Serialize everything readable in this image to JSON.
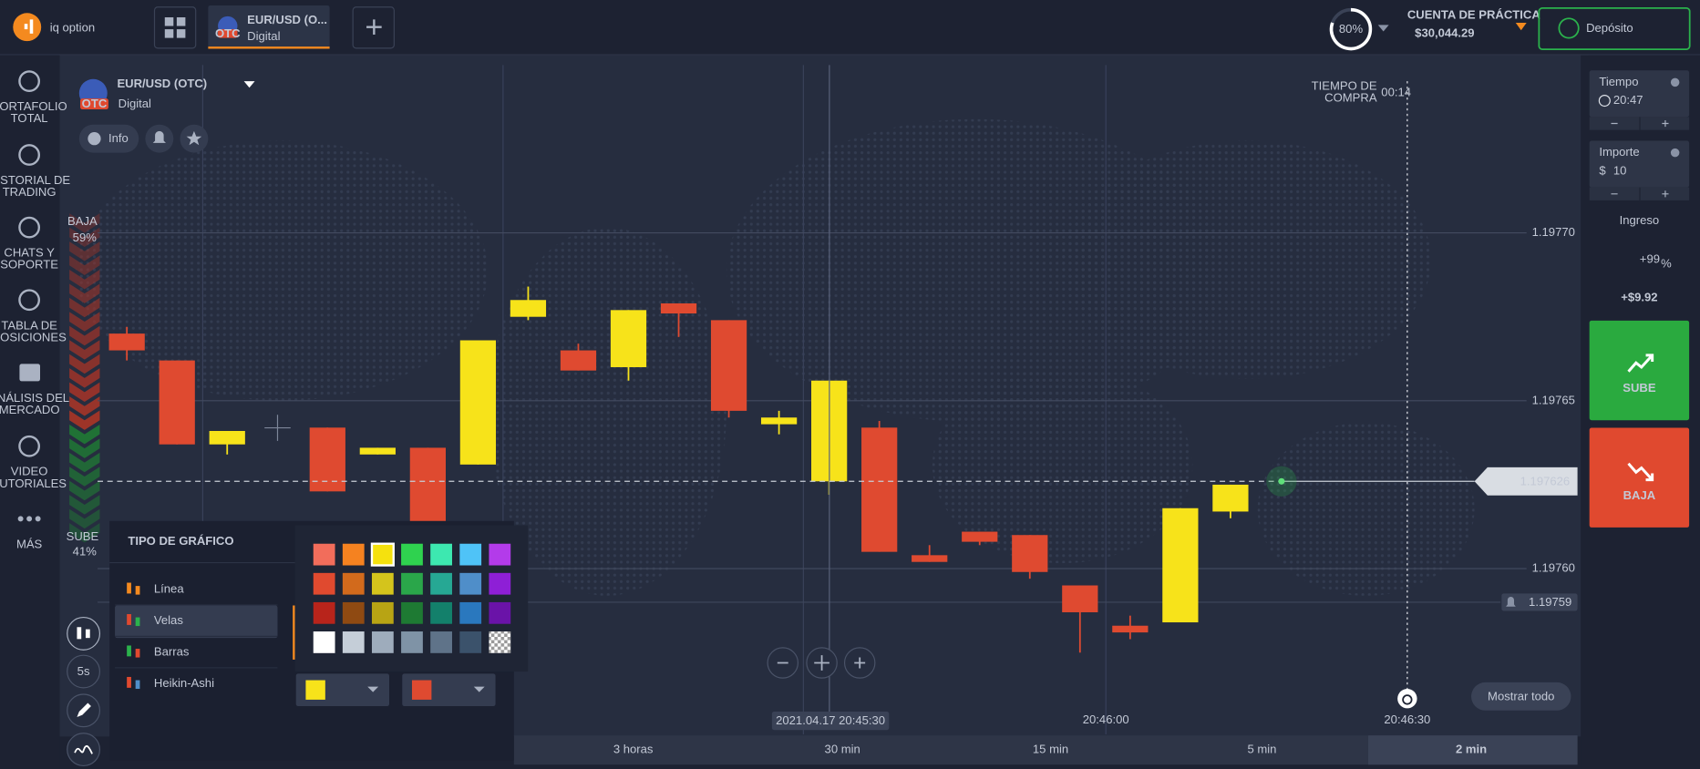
{
  "header": {
    "logo": "iq option",
    "tab": {
      "title": "EUR/USD (O...",
      "subtitle": "Digital",
      "badge": "OTC"
    },
    "progress": "80%",
    "account_label": "CUENTA DE PRÁCTICA",
    "balance": "$30,044.29",
    "deposit": "Depósito"
  },
  "sidebar": [
    [
      "PORTAFOLIO",
      "TOTAL"
    ],
    [
      "HISTORIAL DE",
      "TRADING"
    ],
    [
      "CHATS Y",
      "SOPORTE"
    ],
    [
      "TABLA DE",
      "POSICIONES"
    ],
    [
      "ANÁLISIS DEL",
      "MERCADO"
    ],
    [
      "VIDEO",
      "TUTORIALES"
    ],
    [
      "MÁS"
    ]
  ],
  "sentiment": {
    "down_label": "BAJA",
    "down": "59%",
    "up_label": "SUBE",
    "up": "41%"
  },
  "asset": {
    "name": "EUR/USD (OTC)",
    "type": "Digital",
    "badge": "OTC",
    "info": "Info"
  },
  "purchase_timer": {
    "label": [
      "TIEMPO DE",
      "COMPRA"
    ],
    "time": "00:14"
  },
  "chart": {
    "ylim": [
      1.19755,
      1.19775
    ],
    "yticks": [
      {
        "value": 1.1977,
        "label": "1.19770"
      },
      {
        "value": 1.19765,
        "label": "1.19765"
      },
      {
        "value": 1.1976,
        "label": "1.19760"
      }
    ],
    "up_color": "#f7e31a",
    "down_color": "#df4a30",
    "candles": [
      {
        "open": 1.19767,
        "high": 1.197672,
        "low": 1.197662,
        "close": 1.197665
      },
      {
        "open": 1.197662,
        "high": 1.197662,
        "low": 1.197637,
        "close": 1.197637
      },
      {
        "open": 1.197637,
        "high": 1.197641,
        "low": 1.197634,
        "close": 1.197641
      },
      null,
      {
        "open": 1.197642,
        "high": 1.197642,
        "low": 1.197623,
        "close": 1.197623
      },
      {
        "open": 1.197634,
        "high": 1.197636,
        "low": 1.197634,
        "close": 1.197636
      },
      {
        "open": 1.197636,
        "high": 1.197636,
        "low": 1.197614,
        "close": 1.197614
      },
      {
        "open": 1.197631,
        "high": 1.197668,
        "low": 1.197631,
        "close": 1.197668
      },
      {
        "open": 1.197675,
        "high": 1.197684,
        "low": 1.197674,
        "close": 1.19768
      },
      {
        "open": 1.197665,
        "high": 1.197667,
        "low": 1.197659,
        "close": 1.197659
      },
      {
        "open": 1.19766,
        "high": 1.197677,
        "low": 1.197656,
        "close": 1.197677
      },
      {
        "open": 1.197679,
        "high": 1.197679,
        "low": 1.197669,
        "close": 1.197676
      },
      {
        "open": 1.197674,
        "high": 1.197674,
        "low": 1.197645,
        "close": 1.197647
      },
      {
        "open": 1.197643,
        "high": 1.197647,
        "low": 1.19764,
        "close": 1.197645
      },
      {
        "open": 1.197626,
        "high": 1.197656,
        "low": 1.197622,
        "close": 1.197656
      },
      {
        "open": 1.197642,
        "high": 1.197644,
        "low": 1.197605,
        "close": 1.197605
      },
      {
        "open": 1.197604,
        "high": 1.197607,
        "low": 1.197602,
        "close": 1.197602
      },
      {
        "open": 1.197611,
        "high": 1.197611,
        "low": 1.197607,
        "close": 1.197608
      },
      {
        "open": 1.19761,
        "high": 1.19761,
        "low": 1.197597,
        "close": 1.197599
      },
      {
        "open": 1.197595,
        "high": 1.197595,
        "low": 1.197575,
        "close": 1.197587
      },
      {
        "open": 1.197583,
        "high": 1.197586,
        "low": 1.197579,
        "close": 1.197581
      },
      {
        "open": 1.197584,
        "high": 1.197618,
        "low": 1.197584,
        "close": 1.197618
      },
      {
        "open": 1.197617,
        "high": 1.197625,
        "low": 1.197615,
        "close": 1.197625
      }
    ],
    "current_price": 1.197626,
    "alert_price": 1.19759,
    "time_labels": [
      "20:46:00",
      "20:46:30"
    ],
    "crosshair_time": "2021.04.17 20:45:30"
  },
  "timeframes": [
    "3 horas",
    "30 min",
    "15 min",
    "5 min",
    "2 min"
  ],
  "show_all": "Mostrar todo",
  "chart_type_menu": {
    "title": "TIPO DE GRÁFICO",
    "items": [
      "Línea",
      "Velas",
      "Barras",
      "Heikin-Ashi"
    ]
  },
  "interval": "5s",
  "trade_panel": {
    "time_label": "Tiempo",
    "time": "20:47",
    "amount_label": "Importe",
    "currency": "$",
    "amount": "10",
    "income_label": "Ingreso",
    "payout": "+99",
    "payout_unit": "%",
    "profit": "+$9.92",
    "up": "SUBE",
    "down": "BAJA"
  }
}
